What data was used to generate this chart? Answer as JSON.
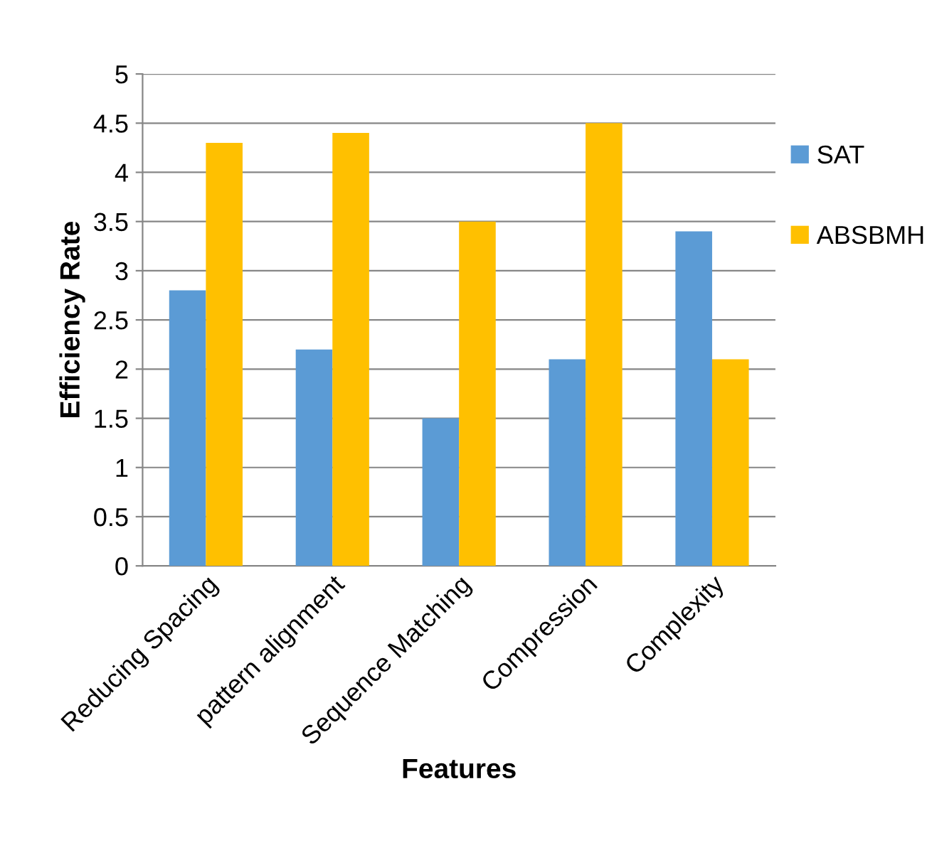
{
  "chart_data": {
    "type": "bar",
    "xlabel": "Features",
    "ylabel": "Efficiency Rate",
    "categories": [
      "Reducing Spacing",
      "pattern alignment",
      "Sequence Matching",
      "Compression",
      "Complexity"
    ],
    "series": [
      {
        "name": "SAT",
        "color": "#5b9bd5",
        "values": [
          2.8,
          2.2,
          1.5,
          2.1,
          3.4
        ]
      },
      {
        "name": "ABSBMH",
        "color": "#ffc000",
        "values": [
          4.3,
          4.4,
          3.5,
          4.5,
          2.1
        ]
      }
    ],
    "ylim": [
      0,
      5
    ],
    "yticks": [
      0,
      0.5,
      1,
      1.5,
      2,
      2.5,
      3,
      3.5,
      4,
      4.5,
      5
    ],
    "grid": "y",
    "legend": "right"
  }
}
